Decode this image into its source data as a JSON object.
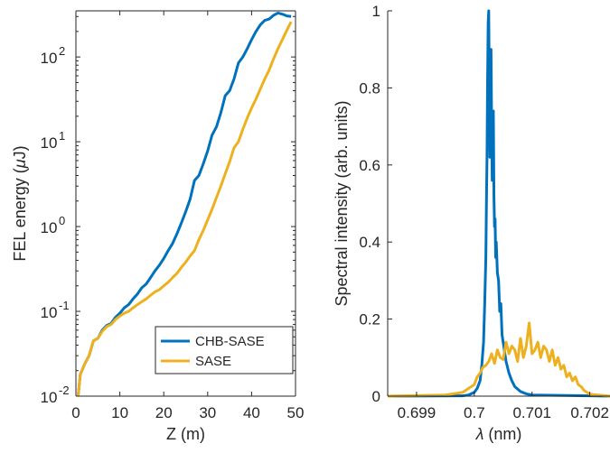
{
  "chart_data": [
    {
      "type": "line",
      "xlabel": "Z (m)",
      "ylabel_parts": [
        "FEL energy (",
        "μ",
        "J)"
      ],
      "xlim": [
        0,
        50
      ],
      "ylim": [
        0.01,
        350
      ],
      "yscale": "log",
      "xticks": [
        0,
        10,
        20,
        30,
        40,
        50
      ],
      "xtick_labels": [
        "0",
        "10",
        "20",
        "30",
        "40",
        "50"
      ],
      "yticks": [
        0.01,
        0.1,
        1,
        10,
        100
      ],
      "ytick_labels": [
        {
          "base": "10",
          "exp": "-2"
        },
        {
          "base": "10",
          "exp": "-1"
        },
        {
          "base": "10",
          "exp": "0"
        },
        {
          "base": "10",
          "exp": "1"
        },
        {
          "base": "10",
          "exp": "2"
        }
      ],
      "legend_position": "bottom-right",
      "series": [
        {
          "name": "CHB-SASE",
          "color": "#0072BD",
          "x": [
            0.5,
            1.0,
            2.0,
            3.0,
            4.0,
            5.0,
            6.0,
            7.0,
            8.0,
            9.0,
            10.0,
            11.0,
            12.0,
            13.0,
            14.0,
            15.0,
            16.0,
            17.0,
            18.0,
            19.0,
            20.0,
            21.0,
            22.0,
            23.0,
            24.0,
            25.0,
            26.0,
            27.0,
            28.0,
            29.0,
            30.0,
            31.0,
            32.0,
            33.0,
            34.0,
            35.0,
            36.0,
            37.0,
            38.0,
            39.0,
            40.0,
            41.0,
            42.0,
            43.0,
            44.0,
            45.0,
            46.0,
            47.0,
            48.0,
            49.0
          ],
          "y": [
            0.01,
            0.018,
            0.024,
            0.03,
            0.045,
            0.048,
            0.06,
            0.068,
            0.072,
            0.085,
            0.095,
            0.11,
            0.12,
            0.14,
            0.16,
            0.19,
            0.21,
            0.25,
            0.3,
            0.35,
            0.42,
            0.52,
            0.63,
            0.82,
            1.1,
            1.5,
            2.1,
            3.5,
            4.0,
            5.5,
            7.8,
            12,
            15,
            22,
            35,
            40,
            55,
            85,
            100,
            125,
            160,
            200,
            240,
            270,
            280,
            310,
            330,
            320,
            305,
            300
          ]
        },
        {
          "name": "SASE",
          "color": "#EDB120",
          "x": [
            0.5,
            1.0,
            2.0,
            3.0,
            4.0,
            5.0,
            6.0,
            7.0,
            8.0,
            9.0,
            10.0,
            11.0,
            12.0,
            13.0,
            14.0,
            15.0,
            16.0,
            17.0,
            18.0,
            19.0,
            20.0,
            21.0,
            22.0,
            23.0,
            24.0,
            25.0,
            26.0,
            27.0,
            28.0,
            29.0,
            30.0,
            31.0,
            32.0,
            33.0,
            34.0,
            35.0,
            36.0,
            37.0,
            38.0,
            39.0,
            40.0,
            41.0,
            42.0,
            43.0,
            44.0,
            45.0,
            46.0,
            47.0,
            48.0,
            49.0
          ],
          "y": [
            0.01,
            0.018,
            0.024,
            0.03,
            0.045,
            0.048,
            0.058,
            0.066,
            0.07,
            0.08,
            0.088,
            0.095,
            0.1,
            0.11,
            0.12,
            0.13,
            0.14,
            0.155,
            0.17,
            0.18,
            0.2,
            0.22,
            0.25,
            0.28,
            0.33,
            0.38,
            0.45,
            0.52,
            0.7,
            0.9,
            1.2,
            1.6,
            2.2,
            3.0,
            4.2,
            5.8,
            8.5,
            10,
            14,
            19,
            25,
            32,
            42,
            55,
            70,
            95,
            125,
            160,
            205,
            260
          ]
        }
      ]
    },
    {
      "type": "line",
      "xlabel_parts": [
        "λ",
        " (nm)"
      ],
      "ylabel": "Spectral intensity (arb. units)",
      "xlim": [
        0.6985,
        0.70235
      ],
      "ylim": [
        0,
        1
      ],
      "xticks": [
        0.699,
        0.7,
        0.701,
        0.702
      ],
      "xtick_labels": [
        "0.699",
        "0.7",
        "0.701",
        "0.702"
      ],
      "yticks": [
        0,
        0.2,
        0.4,
        0.6,
        0.8,
        1
      ],
      "ytick_labels": [
        "0",
        "0.2",
        "0.4",
        "0.6",
        "0.8",
        "1"
      ],
      "series": [
        {
          "name": "CHB-SASE",
          "color": "#0072BD",
          "x": [
            0.6985,
            0.6998,
            0.6999,
            0.7,
            0.70005,
            0.7001,
            0.70013,
            0.70016,
            0.70018,
            0.7002,
            0.70021,
            0.70022,
            0.70023,
            0.70024,
            0.70025,
            0.70026,
            0.70027,
            0.70028,
            0.70029,
            0.7003,
            0.70031,
            0.70032,
            0.70033,
            0.70034,
            0.70035,
            0.70036,
            0.70037,
            0.70038,
            0.7004,
            0.70042,
            0.70044,
            0.70046,
            0.70048,
            0.7005,
            0.70055,
            0.7006,
            0.70065,
            0.7007,
            0.7008,
            0.7009,
            0.701,
            0.702,
            0.70235
          ],
          "y": [
            0,
            0.001,
            0.003,
            0.01,
            0.02,
            0.04,
            0.08,
            0.14,
            0.24,
            0.36,
            0.5,
            0.62,
            0.82,
            0.97,
            1.0,
            0.78,
            0.62,
            0.86,
            0.9,
            0.7,
            0.56,
            0.6,
            0.74,
            0.52,
            0.44,
            0.46,
            0.36,
            0.4,
            0.32,
            0.3,
            0.22,
            0.24,
            0.16,
            0.14,
            0.09,
            0.06,
            0.04,
            0.025,
            0.012,
            0.006,
            0.003,
            0.001,
            0
          ]
        },
        {
          "name": "SASE",
          "color": "#EDB120",
          "x": [
            0.6985,
            0.6995,
            0.6998,
            0.7,
            0.70005,
            0.7001,
            0.70015,
            0.7002,
            0.70025,
            0.7003,
            0.70035,
            0.7004,
            0.70045,
            0.7005,
            0.70055,
            0.7006,
            0.70065,
            0.7007,
            0.70075,
            0.7008,
            0.70085,
            0.7009,
            0.70095,
            0.701,
            0.70105,
            0.7011,
            0.70115,
            0.7012,
            0.70125,
            0.7013,
            0.70135,
            0.7014,
            0.70145,
            0.7015,
            0.70155,
            0.7016,
            0.70165,
            0.7017,
            0.70175,
            0.7018,
            0.70185,
            0.7019,
            0.702,
            0.70235
          ],
          "y": [
            0,
            0.003,
            0.01,
            0.03,
            0.05,
            0.06,
            0.075,
            0.08,
            0.09,
            0.11,
            0.085,
            0.12,
            0.1,
            0.095,
            0.14,
            0.11,
            0.13,
            0.12,
            0.09,
            0.15,
            0.1,
            0.13,
            0.19,
            0.11,
            0.12,
            0.14,
            0.1,
            0.13,
            0.12,
            0.09,
            0.12,
            0.08,
            0.1,
            0.07,
            0.08,
            0.05,
            0.06,
            0.04,
            0.05,
            0.03,
            0.025,
            0.015,
            0.005,
            0
          ]
        }
      ]
    }
  ]
}
